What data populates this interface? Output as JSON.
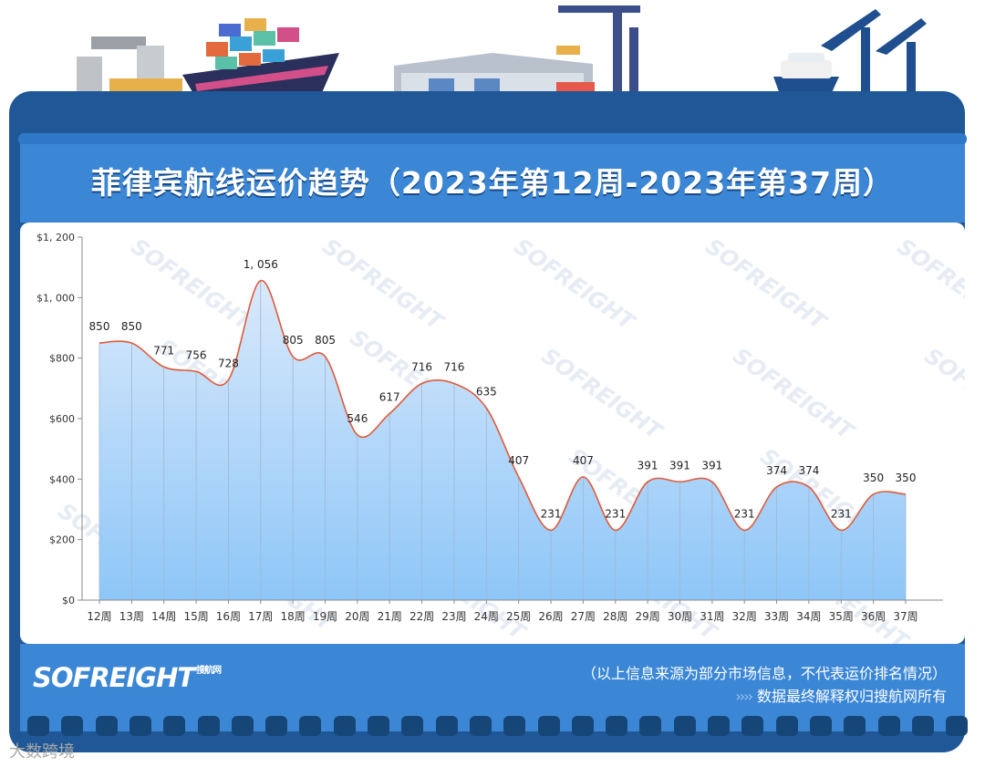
{
  "title": "菲律宾航线运价趋势（2023年第12周-2023年第37周）",
  "logo": "SOFREIGHT",
  "logo_sub": "搜航网",
  "watermark_text": "SOFREIGHT",
  "footer": {
    "disclaimer": "（以上信息来源为部分市场信息，不代表运价排名情况）",
    "arrows": "››››",
    "rights": "数据最终解释权归搜航网所有"
  },
  "bottom_watermark": "大数跨境",
  "colors": {
    "board": "#1f5797",
    "title_band": "#3b87d6",
    "line": "#e05a3a",
    "area_top": "#d9e9fb",
    "area_bottom": "#8ec6f8"
  },
  "chart_data": {
    "type": "area",
    "categories": [
      "12周",
      "13周",
      "14周",
      "15周",
      "16周",
      "17周",
      "18周",
      "19周",
      "20周",
      "21周",
      "22周",
      "23周",
      "24周",
      "25周",
      "26周",
      "27周",
      "28周",
      "29周",
      "30周",
      "31周",
      "32周",
      "33周",
      "34周",
      "35周",
      "36周",
      "37周"
    ],
    "values": [
      850,
      850,
      771,
      756,
      728,
      1056,
      805,
      805,
      546,
      617,
      716,
      716,
      635,
      407,
      231,
      407,
      231,
      391,
      391,
      391,
      231,
      374,
      374,
      231,
      350,
      350
    ],
    "data_labels": [
      "850",
      "850",
      "771",
      "756",
      "728",
      "1, 056",
      "805",
      "805",
      "546",
      "617",
      "716",
      "716",
      "635",
      "407",
      "231",
      "407",
      "231",
      "391",
      "391",
      "391",
      "231",
      "374",
      "374",
      "231",
      "350",
      "350"
    ],
    "y_ticks": [
      0,
      200,
      400,
      600,
      800,
      1000,
      1200
    ],
    "y_tick_labels": [
      "$0",
      "$200",
      "$400",
      "$600",
      "$800",
      "$1, 000",
      "$1, 200"
    ],
    "ylim": [
      0,
      1200
    ],
    "grid": false,
    "xlabel": "",
    "ylabel": ""
  }
}
